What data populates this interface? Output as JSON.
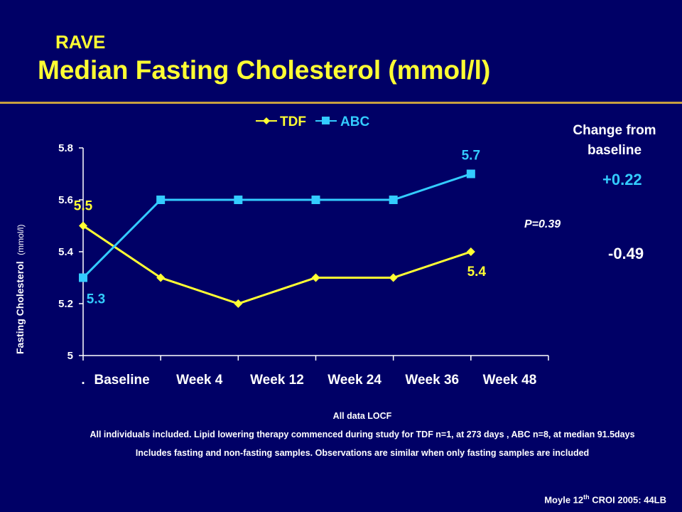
{
  "header": {
    "title_line1": "RAVE",
    "title_line2": "Median Fasting Cholesterol (mmol/l)"
  },
  "colors": {
    "background": "#000066",
    "title": "#ffff33",
    "rule": "#c8a040",
    "tdf": "#ffff33",
    "abc": "#33ccff"
  },
  "chart_data": {
    "type": "line",
    "title": "",
    "xlabel": "",
    "ylabel_main": "Fasting Cholesterol",
    "ylabel_unit": "(mmol/l)",
    "categories": [
      ".",
      "Baseline",
      "Week 4",
      "Week 12",
      "Week 24",
      "Week 36",
      "Week 48"
    ],
    "ylim": [
      5,
      5.8
    ],
    "yticks": [
      "5",
      "5.2",
      "5.4",
      "5.6",
      "5.8"
    ],
    "series": [
      {
        "name": "TDF",
        "color": "#ffff33",
        "marker": "diamond",
        "values": [
          null,
          5.5,
          5.3,
          5.2,
          5.3,
          5.3,
          5.4
        ]
      },
      {
        "name": "ABC",
        "color": "#33ccff",
        "marker": "square",
        "values": [
          null,
          5.3,
          5.6,
          5.6,
          5.6,
          5.6,
          5.7
        ]
      }
    ],
    "data_labels": [
      {
        "series": "TDF",
        "text": "5.5"
      },
      {
        "series": "TDF",
        "text": "5.4"
      },
      {
        "series": "ABC",
        "text": "5.3"
      },
      {
        "series": "ABC",
        "text": "5.7"
      }
    ],
    "annotation": "P=0.39",
    "legend_position": "top",
    "grid": false
  },
  "change": {
    "header": "Change from baseline",
    "abc": "+0.22",
    "tdf": "-0.49"
  },
  "footnotes": {
    "line1": "All data LOCF",
    "line2": "All individuals included. Lipid lowering therapy commenced during study for  TDF n=1, at 273 days ,  ABC n=8, at median 91.5days",
    "line3": "Includes fasting and non-fasting samples. Observations are similar when only fasting samples are included"
  },
  "citation": {
    "prefix": "Moyle 12",
    "sup": "th",
    "suffix": " CROI 2005: 44LB"
  }
}
